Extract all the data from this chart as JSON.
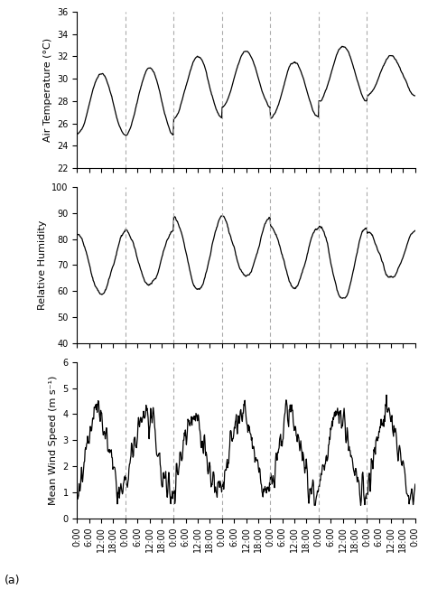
{
  "label_a": "(a)",
  "subplot_labels": [
    "Air Temperature (°C)",
    "Relative Humidity",
    "Mean Wind Speed (m s⁻¹)"
  ],
  "temp_ylim": [
    22,
    36
  ],
  "temp_yticks": [
    22,
    24,
    26,
    28,
    30,
    32,
    34,
    36
  ],
  "rh_ylim": [
    40,
    100
  ],
  "rh_yticks": [
    40,
    50,
    60,
    70,
    80,
    90,
    100
  ],
  "wind_ylim": [
    0,
    6
  ],
  "wind_yticks": [
    0,
    1,
    2,
    3,
    4,
    5,
    6
  ],
  "n_days": 7,
  "steps_per_hour": 4,
  "background_color": "#ffffff",
  "line_color": "#000000",
  "vline_color": "#aaaaaa",
  "tick_label_fontsize": 7,
  "ylabel_fontsize": 8
}
